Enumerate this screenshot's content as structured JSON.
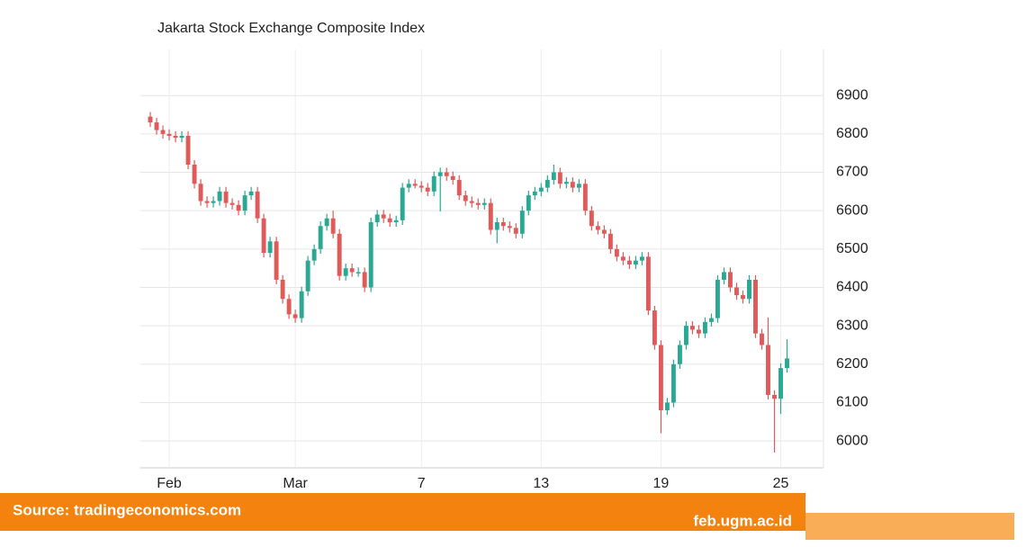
{
  "chart_data": {
    "type": "candlestick",
    "title": "Jakarta Stock Exchange Composite Index",
    "categories": [
      null,
      null,
      null,
      "Feb",
      null,
      null,
      null,
      null,
      null,
      null,
      null,
      null,
      null,
      null,
      null,
      null,
      null,
      null,
      null,
      null,
      null,
      null,
      null,
      "Mar",
      null,
      null,
      null,
      null,
      null,
      null,
      null,
      null,
      null,
      null,
      null,
      null,
      null,
      null,
      null,
      null,
      null,
      null,
      null,
      "7",
      null,
      null,
      null,
      null,
      null,
      null,
      null,
      null,
      null,
      null,
      null,
      null,
      null,
      null,
      null,
      null,
      null,
      null,
      "13",
      null,
      null,
      null,
      null,
      null,
      null,
      null,
      null,
      null,
      null,
      null,
      null,
      null,
      null,
      null,
      null,
      null,
      null,
      "19",
      null,
      null,
      null,
      null,
      null,
      null,
      null,
      null,
      null,
      null,
      null,
      null,
      null,
      null,
      null,
      null,
      null,
      null,
      "25",
      null
    ],
    "open": [
      6845,
      6830,
      6810,
      6800,
      6795,
      6790,
      6795,
      6720,
      6670,
      6625,
      6620,
      6625,
      6650,
      6620,
      6615,
      6600,
      6640,
      6650,
      6580,
      6490,
      6520,
      6420,
      6370,
      6330,
      6320,
      6390,
      6470,
      6500,
      6560,
      6580,
      6540,
      6430,
      6450,
      6440,
      6440,
      6400,
      6570,
      6590,
      6580,
      6570,
      6575,
      6660,
      6670,
      6665,
      6660,
      6650,
      6690,
      6700,
      6690,
      6680,
      6640,
      6625,
      6620,
      6615,
      6620,
      6550,
      6570,
      6560,
      6555,
      6540,
      6600,
      6640,
      6650,
      6660,
      6680,
      6700,
      6670,
      6675,
      6660,
      6670,
      6600,
      6560,
      6550,
      6540,
      6500,
      6480,
      6470,
      6460,
      6470,
      6480,
      6340,
      6250,
      6080,
      6100,
      6200,
      6250,
      6300,
      6290,
      6280,
      6310,
      6320,
      6420,
      6440,
      6400,
      6380,
      6370,
      6420,
      6280,
      6250,
      6120,
      6110,
      6190
    ],
    "high": [
      6857,
      6842,
      6822,
      6812,
      6807,
      6807,
      6807,
      6732,
      6682,
      6637,
      6637,
      6662,
      6662,
      6632,
      6627,
      6652,
      6662,
      6662,
      6592,
      6532,
      6532,
      6432,
      6382,
      6342,
      6402,
      6482,
      6512,
      6572,
      6592,
      6600,
      6552,
      6462,
      6462,
      6452,
      6452,
      6582,
      6602,
      6602,
      6592,
      6587,
      6672,
      6682,
      6682,
      6677,
      6672,
      6702,
      6712,
      6712,
      6702,
      6692,
      6652,
      6637,
      6632,
      6632,
      6632,
      6582,
      6582,
      6572,
      6567,
      6612,
      6652,
      6662,
      6672,
      6692,
      6720,
      6712,
      6687,
      6687,
      6682,
      6682,
      6612,
      6572,
      6562,
      6552,
      6512,
      6492,
      6482,
      6482,
      6492,
      6492,
      6352,
      6262,
      6112,
      6212,
      6262,
      6312,
      6312,
      6302,
      6322,
      6332,
      6432,
      6452,
      6452,
      6412,
      6392,
      6432,
      6432,
      6292,
      6322,
      6132,
      6202,
      6265
    ],
    "low": [
      6818,
      6798,
      6788,
      6783,
      6778,
      6778,
      6708,
      6658,
      6613,
      6608,
      6608,
      6613,
      6608,
      6603,
      6588,
      6588,
      6628,
      6568,
      6478,
      6478,
      6408,
      6358,
      6318,
      6308,
      6308,
      6378,
      6458,
      6488,
      6548,
      6528,
      6418,
      6418,
      6428,
      6428,
      6388,
      6388,
      6558,
      6568,
      6558,
      6558,
      6563,
      6648,
      6658,
      6648,
      6638,
      6638,
      6598,
      6678,
      6668,
      6628,
      6613,
      6608,
      6603,
      6603,
      6538,
      6515,
      6548,
      6543,
      6528,
      6528,
      6588,
      6628,
      6638,
      6648,
      6668,
      6658,
      6658,
      6648,
      6648,
      6588,
      6548,
      6538,
      6528,
      6488,
      6468,
      6458,
      6448,
      6448,
      6458,
      6328,
      6238,
      6020,
      6068,
      6088,
      6188,
      6238,
      6278,
      6268,
      6268,
      6298,
      6308,
      6408,
      6388,
      6368,
      6358,
      6358,
      6268,
      6238,
      6108,
      5970,
      6070,
      6178
    ],
    "close": [
      6830,
      6810,
      6800,
      6795,
      6790,
      6795,
      6720,
      6670,
      6625,
      6620,
      6625,
      6650,
      6620,
      6615,
      6600,
      6640,
      6650,
      6580,
      6490,
      6520,
      6420,
      6370,
      6330,
      6320,
      6390,
      6470,
      6500,
      6560,
      6580,
      6540,
      6430,
      6450,
      6440,
      6440,
      6400,
      6570,
      6590,
      6580,
      6570,
      6575,
      6660,
      6670,
      6665,
      6660,
      6650,
      6690,
      6700,
      6690,
      6680,
      6640,
      6625,
      6620,
      6615,
      6620,
      6550,
      6570,
      6560,
      6555,
      6540,
      6600,
      6640,
      6650,
      6660,
      6680,
      6700,
      6670,
      6675,
      6660,
      6670,
      6600,
      6560,
      6550,
      6540,
      6500,
      6480,
      6470,
      6460,
      6470,
      6480,
      6340,
      6250,
      6080,
      6100,
      6200,
      6250,
      6300,
      6290,
      6280,
      6310,
      6320,
      6420,
      6440,
      6400,
      6380,
      6370,
      6420,
      6280,
      6250,
      6120,
      6110,
      6190,
      6215
    ],
    "up_color": "#2aa894",
    "down_color": "#e05a5a",
    "ylim": [
      5930,
      7020
    ],
    "yticks": [
      6000,
      6100,
      6200,
      6300,
      6400,
      6500,
      6600,
      6700,
      6800,
      6900
    ],
    "grid": true
  },
  "banner": {
    "source": "Source: tradingeconomics.com",
    "site": "feb.ugm.ac.id"
  }
}
